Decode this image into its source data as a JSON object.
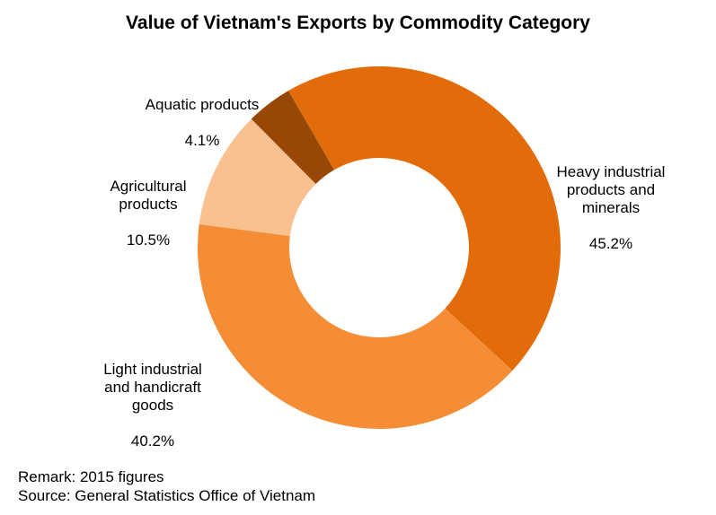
{
  "title": "Value of Vietnam's Exports by Commodity Category",
  "labels": [
    {
      "name": "Heavy industrial\nproducts and\nminerals",
      "pct": "45.2%"
    },
    {
      "name": "Light industrial\nand handicraft\ngoods",
      "pct": "40.2%"
    },
    {
      "name": "Agricultural\nproducts",
      "pct": "10.5%"
    },
    {
      "name": "Aquatic products",
      "pct": "4.1%"
    }
  ],
  "footer": {
    "remark": "Remark: 2015 figures",
    "source": "Source: General Statistics Office of Vietnam"
  },
  "chart_data": {
    "type": "pie",
    "variant": "donut",
    "title": "Value of Vietnam's Exports by Commodity Category",
    "categories": [
      "Heavy industrial products and minerals",
      "Light industrial and handicraft goods",
      "Agricultural products",
      "Aquatic products"
    ],
    "values": [
      45.2,
      40.2,
      10.5,
      4.1
    ],
    "unit": "%",
    "colors": [
      "#E36C0A",
      "#F58D36",
      "#F9C090",
      "#984806"
    ],
    "start_angle_deg": -30,
    "direction": "clockwise",
    "legend": "none (data labels outside)",
    "annotations": [
      "Remark: 2015 figures",
      "Source: General Statistics Office of Vietnam"
    ]
  }
}
